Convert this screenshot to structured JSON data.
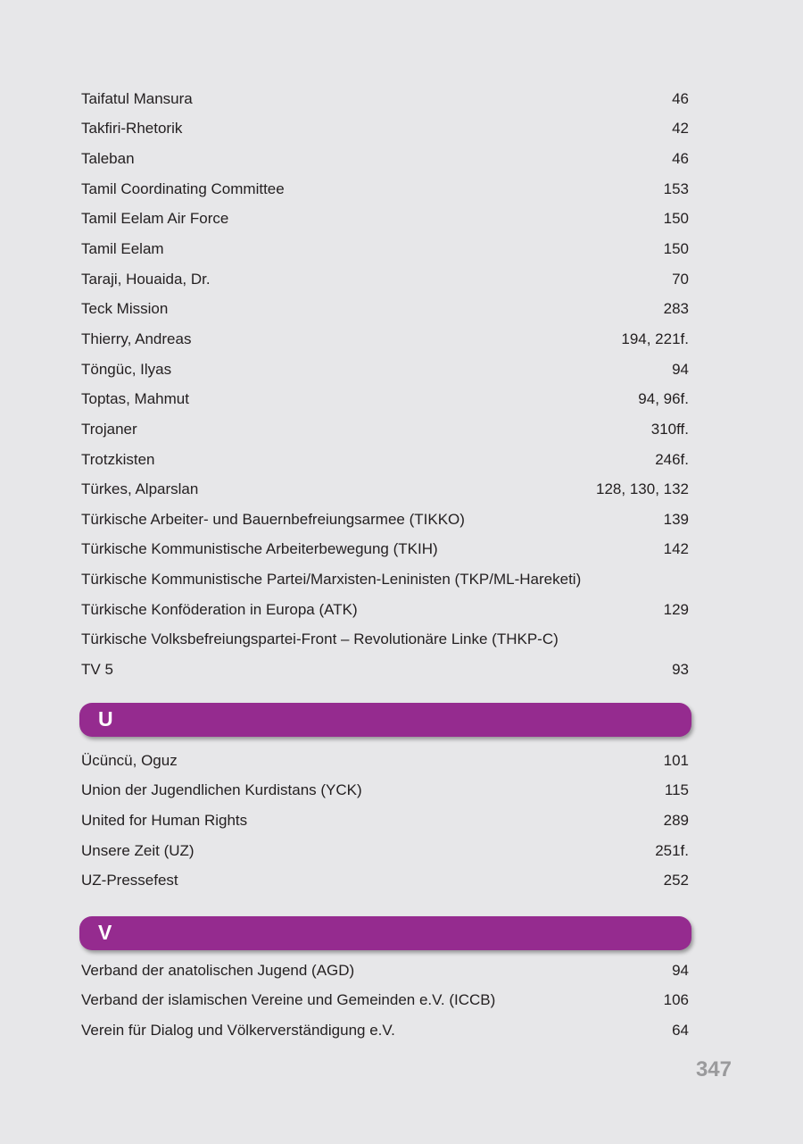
{
  "sections": {
    "t": {
      "entries": [
        {
          "term": "Taifatul Mansura",
          "pages": "46"
        },
        {
          "term": "Takfiri-Rhetorik",
          "pages": "42"
        },
        {
          "term": "Taleban",
          "pages": "46"
        },
        {
          "term": "Tamil Coordinating Committee",
          "pages": "153"
        },
        {
          "term": "Tamil Eelam Air Force",
          "pages": "150"
        },
        {
          "term": "Tamil Eelam",
          "pages": "150"
        },
        {
          "term": "Taraji, Houaida, Dr.",
          "pages": "70"
        },
        {
          "term": "Teck Mission",
          "pages": "283"
        },
        {
          "term": "Thierry, Andreas",
          "pages": "194, 221f."
        },
        {
          "term": "Töngüc, Ilyas",
          "pages": "94"
        },
        {
          "term": "Toptas, Mahmut",
          "pages": "94, 96f."
        },
        {
          "term": "Trojaner",
          "pages": "310ff."
        },
        {
          "term": "Trotzkisten",
          "pages": "246f."
        },
        {
          "term": "Türkes, Alparslan",
          "pages": "128, 130, 132"
        },
        {
          "term": "Türkische Arbeiter- und Bauernbefreiungsarmee (TIKKO)",
          "pages": "139"
        },
        {
          "term": "Türkische Kommunistische Arbeiterbewegung (TKIH)",
          "pages": "142"
        },
        {
          "term": "Türkische Kommunistische Partei/Marxisten-Leninisten (TKP/ML-Hareketi)",
          "pages": ""
        },
        {
          "term": "Türkische Konföderation in Europa (ATK)",
          "pages": "129"
        },
        {
          "term": "Türkische Volksbefreiungspartei-Front – Revolutionäre Linke (THKP-C)",
          "pages": ""
        },
        {
          "term": "TV 5",
          "pages": "93"
        }
      ]
    },
    "u": {
      "letter": "U",
      "entries": [
        {
          "term": "Ücüncü, Oguz",
          "pages": "101"
        },
        {
          "term": "Union der Jugendlichen Kurdistans (YCK)",
          "pages": "115"
        },
        {
          "term": "United for Human Rights",
          "pages": "289"
        },
        {
          "term": "Unsere Zeit (UZ)",
          "pages": "251f."
        },
        {
          "term": "UZ-Pressefest",
          "pages": "252"
        }
      ]
    },
    "v": {
      "letter": "V",
      "entries": [
        {
          "term": "Verband der anatolischen Jugend (AGD)",
          "pages": "94"
        },
        {
          "term": "Verband der islamischen Vereine und Gemeinden e.V. (ICCB)",
          "pages": "106"
        },
        {
          "term": "Verein für Dialog und Völkerverständigung e.V.",
          "pages": "64"
        }
      ]
    }
  },
  "page_number": "347",
  "colors": {
    "header_bar": "#952b8f",
    "background": "#e7e7e9",
    "page_number": "#9a9a9c"
  }
}
